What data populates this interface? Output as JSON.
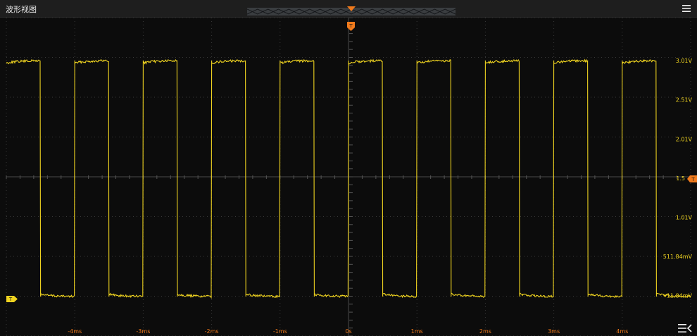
{
  "window": {
    "title": "波形视图"
  },
  "colors": {
    "trace": "#f0d420",
    "trigger": "#f07a1c",
    "grid": "#3a3a3a",
    "background": "#0c0c0c"
  },
  "trigger": {
    "marker_label": "T",
    "level_label": "T",
    "channel_label": "T"
  },
  "icons": {
    "menu": "menu-icon",
    "expand": "expand-panel-icon"
  },
  "chart_data": {
    "type": "line",
    "title": "",
    "xlabel": "",
    "ylabel": "",
    "x_ticks": [
      "-4ms",
      "-3ms",
      "-2ms",
      "-1ms",
      "0s",
      "1ms",
      "2ms",
      "3ms",
      "4ms"
    ],
    "x_tick_values_ms": [
      -4,
      -3,
      -2,
      -1,
      0,
      1,
      2,
      3,
      4
    ],
    "y_ticks": [
      "3.01V",
      "2.51V",
      "2.01V",
      "1.5",
      "1.01V",
      "511.84mV",
      "11.84mV"
    ],
    "y_tick_values_v": [
      3.01,
      2.51,
      2.01,
      1.51,
      1.01,
      0.51184,
      0.01184
    ],
    "xlim_ms": [
      -5,
      5
    ],
    "trigger_level_v": 1.5,
    "series": [
      {
        "waveform": "square",
        "high_v": 3.01,
        "low_v": 0.0,
        "period_ms": 1.0,
        "duty": 0.5,
        "rising_edges_ms": [
          -4.0,
          -3.0,
          -2.0,
          -1.0,
          0.0,
          1.0,
          2.0,
          3.0,
          4.0
        ],
        "falling_edges_ms": [
          -4.5,
          -3.5,
          -2.5,
          -1.5,
          -0.5,
          0.5,
          1.5,
          2.5,
          3.5,
          4.5
        ]
      }
    ],
    "grid": true
  }
}
